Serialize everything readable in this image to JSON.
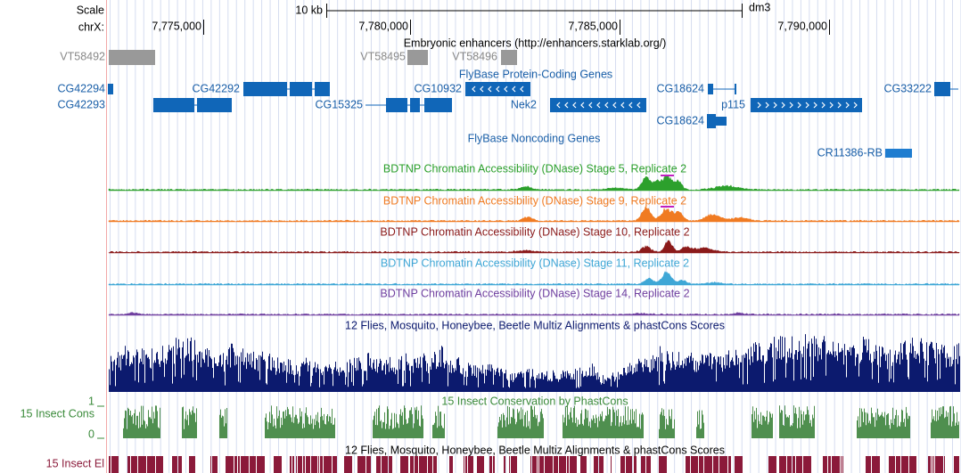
{
  "ruler": {
    "scale": "Scale",
    "bar_label": "10 kb",
    "assembly": "dm3",
    "chrom": "chrX:",
    "positions": [
      "7,775,000",
      "7,780,000",
      "7,785,000",
      "7,790,000"
    ]
  },
  "enhancers": {
    "title": "Embryonic enhancers (http://enhancers.starklab.org/)",
    "items": [
      "VT58492",
      "VT58495",
      "VT58496"
    ]
  },
  "coding_genes": {
    "title": "FlyBase Protein-Coding Genes",
    "items": [
      "CG42294",
      "CG42293",
      "CG42292",
      "CG15325",
      "CG10932",
      "Nek2",
      "CG18624",
      "CG18624",
      "p115",
      "CG33222"
    ]
  },
  "noncoding_genes": {
    "title": "FlyBase Noncoding Genes",
    "items": [
      "CR11386-RB"
    ]
  },
  "dnase_tracks": [
    "BDTNP Chromatin Accessibility (DNase) Stage 5, Replicate 2",
    "BDTNP Chromatin Accessibility (DNase) Stage 9, Replicate 2",
    "BDTNP Chromatin Accessibility (DNase) Stage 10, Replicate 2",
    "BDTNP Chromatin Accessibility (DNase) Stage 11, Replicate 2",
    "BDTNP Chromatin Accessibility (DNase) Stage 14, Replicate 2"
  ],
  "conservation": {
    "multiz_title": "12 Flies, Mosquito, Honeybee, Beetle Multiz Alignments & phastCons Scores",
    "phastcons_title": "15 Insect Conservation by PhastCons",
    "label": "15 Insect Cons",
    "max": "1",
    "min": "0",
    "elements_title": "12 Flies, Mosquito, Honeybee, Beetle Multiz Alignments & phastCons Scores",
    "elements_label": "15 Insect El"
  }
}
